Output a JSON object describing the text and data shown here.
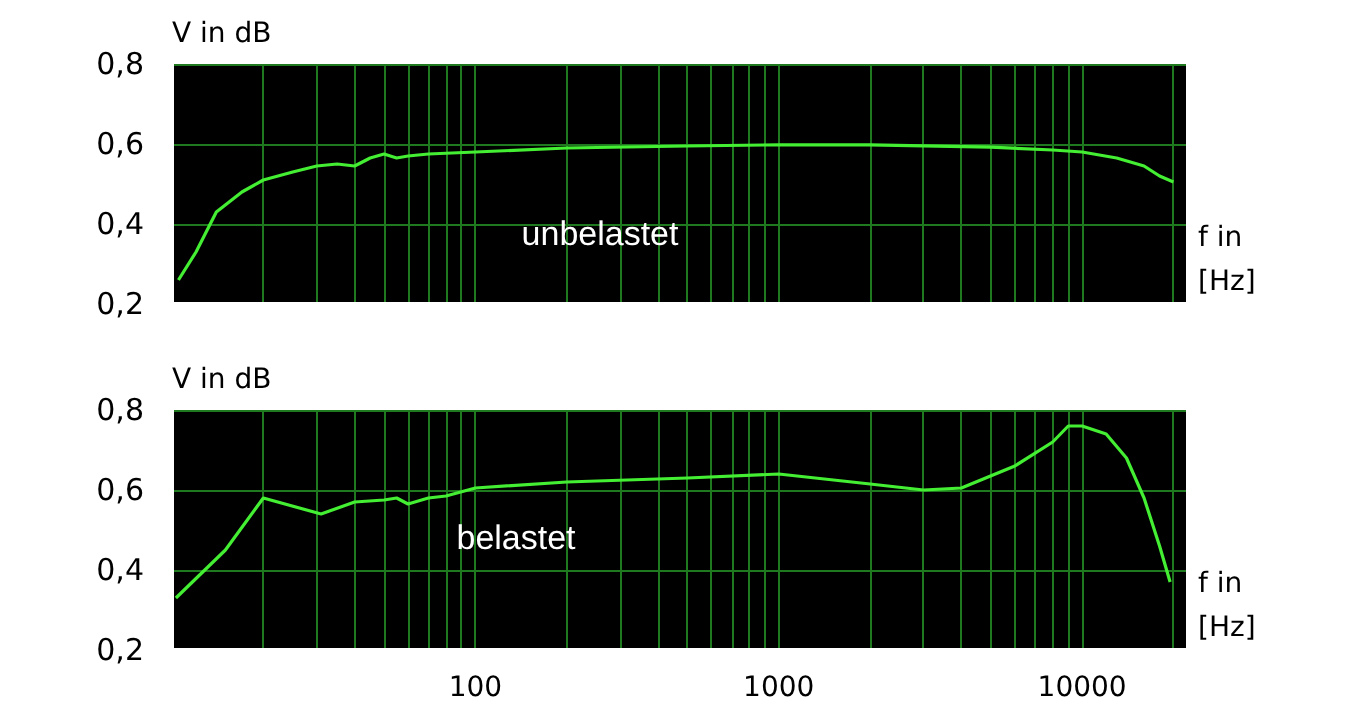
{
  "chart_data": [
    {
      "type": "line",
      "ylabel": "V in dB",
      "xlabel": "f in\n[Hz]",
      "log": "x",
      "grid": true,
      "marker": "none",
      "tick_labels": "y",
      "xlim": [
        10,
        22000
      ],
      "ylim": [
        0.2,
        0.8
      ],
      "xticks": [
        {
          "value": 20,
          "label": null
        },
        {
          "value": 30,
          "label": null
        },
        {
          "value": 40,
          "label": null
        },
        {
          "value": 50,
          "label": null
        },
        {
          "value": 60,
          "label": null
        },
        {
          "value": 70,
          "label": null
        },
        {
          "value": 80,
          "label": null
        },
        {
          "value": 90,
          "label": null
        },
        {
          "value": 100,
          "label": null
        },
        {
          "value": 200,
          "label": null
        },
        {
          "value": 300,
          "label": null
        },
        {
          "value": 400,
          "label": null
        },
        {
          "value": 500,
          "label": null
        },
        {
          "value": 600,
          "label": null
        },
        {
          "value": 700,
          "label": null
        },
        {
          "value": 800,
          "label": null
        },
        {
          "value": 900,
          "label": null
        },
        {
          "value": 1000,
          "label": null
        },
        {
          "value": 2000,
          "label": null
        },
        {
          "value": 3000,
          "label": null
        },
        {
          "value": 4000,
          "label": null
        },
        {
          "value": 5000,
          "label": null
        },
        {
          "value": 6000,
          "label": null
        },
        {
          "value": 7000,
          "label": null
        },
        {
          "value": 8000,
          "label": null
        },
        {
          "value": 9000,
          "label": null
        },
        {
          "value": 10000,
          "label": null
        },
        {
          "value": 20000,
          "label": null
        }
      ],
      "yticks": [
        {
          "value": 0.2,
          "label": "0,2"
        },
        {
          "value": 0.4,
          "label": "0,4"
        },
        {
          "value": 0.6,
          "label": "0,6"
        },
        {
          "value": 0.8,
          "label": "0,8"
        }
      ],
      "annotations": [
        "unbelastet"
      ],
      "series": [
        {
          "color": "#44ee33",
          "x": [
            10.5,
            12,
            14,
            17,
            20,
            25,
            30,
            35,
            40,
            45,
            50,
            55,
            60,
            70,
            100,
            200,
            500,
            1000,
            2000,
            5000,
            8000,
            10000,
            13000,
            16000,
            18000,
            20000
          ],
          "values": [
            0.26,
            0.33,
            0.43,
            0.48,
            0.51,
            0.53,
            0.545,
            0.55,
            0.545,
            0.565,
            0.575,
            0.565,
            0.57,
            0.575,
            0.58,
            0.59,
            0.595,
            0.598,
            0.598,
            0.592,
            0.585,
            0.58,
            0.565,
            0.545,
            0.52,
            0.505
          ]
        }
      ]
    },
    {
      "type": "line",
      "ylabel": "V in dB",
      "xlabel": "f in\n[Hz]",
      "log": "x",
      "grid": true,
      "marker": "none",
      "xlim": [
        10,
        22000
      ],
      "ylim": [
        0.2,
        0.8
      ],
      "xticks": [
        {
          "value": 20,
          "label": null
        },
        {
          "value": 30,
          "label": null
        },
        {
          "value": 40,
          "label": null
        },
        {
          "value": 50,
          "label": null
        },
        {
          "value": 60,
          "label": null
        },
        {
          "value": 70,
          "label": null
        },
        {
          "value": 80,
          "label": null
        },
        {
          "value": 90,
          "label": null
        },
        100,
        {
          "value": 200,
          "label": null
        },
        {
          "value": 300,
          "label": null
        },
        {
          "value": 400,
          "label": null
        },
        {
          "value": 500,
          "label": null
        },
        {
          "value": 600,
          "label": null
        },
        {
          "value": 700,
          "label": null
        },
        {
          "value": 800,
          "label": null
        },
        {
          "value": 900,
          "label": null
        },
        1000,
        {
          "value": 2000,
          "label": null
        },
        {
          "value": 3000,
          "label": null
        },
        {
          "value": 4000,
          "label": null
        },
        {
          "value": 5000,
          "label": null
        },
        {
          "value": 6000,
          "label": null
        },
        {
          "value": 7000,
          "label": null
        },
        {
          "value": 8000,
          "label": null
        },
        {
          "value": 9000,
          "label": null
        },
        10000,
        {
          "value": 20000,
          "label": null
        }
      ],
      "yticks": [
        {
          "value": 0.2,
          "label": "0,2"
        },
        {
          "value": 0.4,
          "label": "0,4"
        },
        {
          "value": 0.6,
          "label": "0,6"
        },
        {
          "value": 0.8,
          "label": "0,8"
        }
      ],
      "annotations": [
        "belastet"
      ],
      "series": [
        {
          "color": "#44ee33",
          "x": [
            10.3,
            15,
            20,
            31,
            40,
            50,
            55,
            60,
            70,
            80,
            100,
            200,
            500,
            1000,
            2000,
            3000,
            4000,
            6000,
            8000,
            9000,
            10000,
            12000,
            14000,
            16000,
            18000,
            19500
          ],
          "values": [
            0.33,
            0.45,
            0.58,
            0.54,
            0.57,
            0.575,
            0.58,
            0.565,
            0.58,
            0.585,
            0.605,
            0.62,
            0.63,
            0.64,
            0.615,
            0.6,
            0.605,
            0.66,
            0.72,
            0.76,
            0.76,
            0.74,
            0.68,
            0.58,
            0.46,
            0.37
          ]
        }
      ]
    }
  ]
}
